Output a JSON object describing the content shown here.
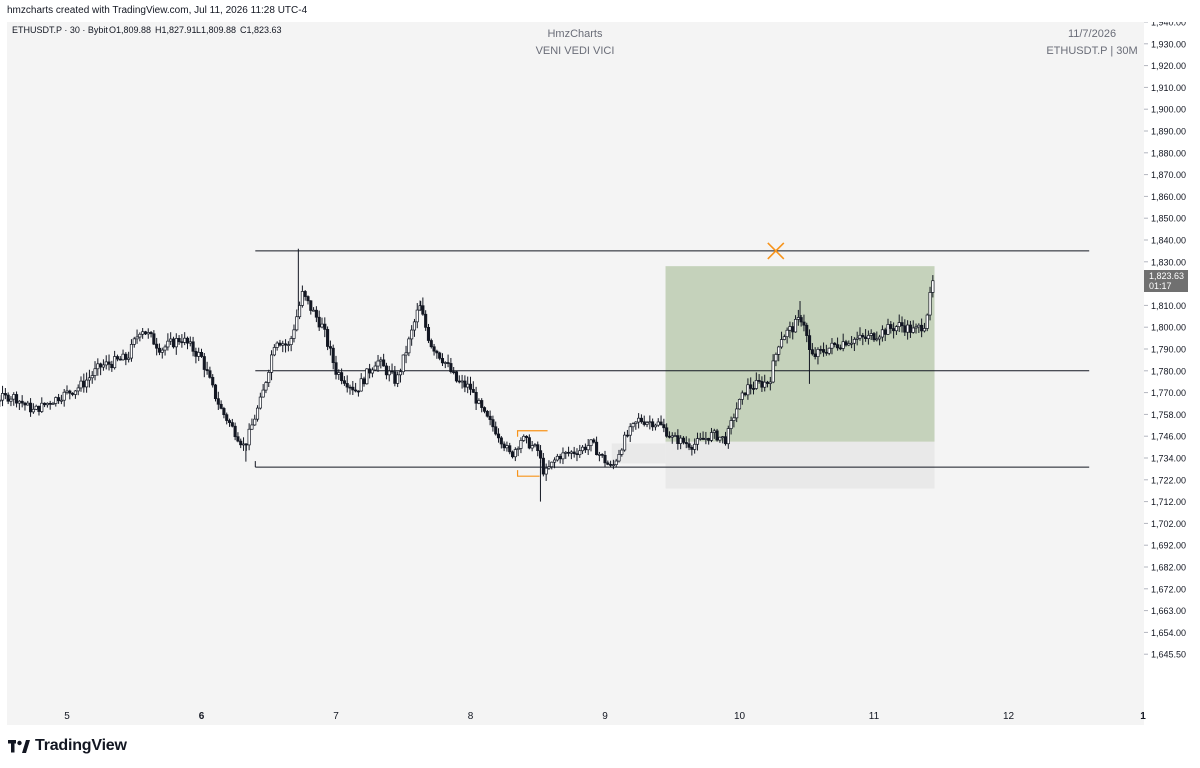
{
  "credit": "hmzcharts created with TradingView.com, Jul 11, 2026 11:28 UTC-4",
  "legend": {
    "symbol": "ETHUSDT.P · 30 · Bybit",
    "open": "O1,809.88",
    "high": "H1,827.91",
    "low": "L1,809.88",
    "close": "C1,823.63"
  },
  "watermark": {
    "title": "HmzCharts",
    "subtitle": "VENI VEDI VICI",
    "date": "11/7/2026",
    "symbol": "ETHUSDT.P | 30M"
  },
  "price_label": {
    "price": "1,823.63",
    "countdown": "01:17"
  },
  "brand": "TradingView",
  "colors": {
    "up": "#131722",
    "down": "#131722",
    "zone_fill": "#c5d2bb",
    "orange": "#f7931a",
    "background": "#f4f4f4"
  },
  "chart_data": {
    "type": "candlestick",
    "y_ticks": [
      "1,940.00",
      "1,930.00",
      "1,920.00",
      "1,910.00",
      "1,900.00",
      "1,890.00",
      "1,880.00",
      "1,870.00",
      "1,860.00",
      "1,850.00",
      "1,840.00",
      "1,830.00",
      "1,820.00",
      "1,810.00",
      "1,800.00",
      "1,790.00",
      "1,780.00",
      "1,770.00",
      "1,758.00",
      "1,746.00",
      "1,734.00",
      "1,722.00",
      "1,712.00",
      "1,702.00",
      "1,692.00",
      "1,682.00",
      "1,672.00",
      "1,663.00",
      "1,654.00",
      "1,645.50"
    ],
    "x_ticks": [
      {
        "label": "5",
        "day": 5,
        "bold": false
      },
      {
        "label": "6",
        "day": 6,
        "bold": true
      },
      {
        "label": "7",
        "day": 7,
        "bold": false
      },
      {
        "label": "8",
        "day": 8,
        "bold": false
      },
      {
        "label": "9",
        "day": 9,
        "bold": false
      },
      {
        "label": "10",
        "day": 10,
        "bold": false
      },
      {
        "label": "11",
        "day": 11,
        "bold": false
      },
      {
        "label": "12",
        "day": 12,
        "bold": false
      },
      {
        "label": "1",
        "day": 13,
        "bold": true
      }
    ],
    "levels": [
      {
        "price": 1835,
        "from": 6.4,
        "to": 12.6
      },
      {
        "price": 1780,
        "from": 6.4,
        "to": 12.6
      },
      {
        "price": 1729,
        "from": 6.4,
        "to": 12.6
      }
    ],
    "zone_target": {
      "from": 9.45,
      "to": 11.45,
      "top": 1828,
      "bottom": 1743
    },
    "zone_stop": {
      "from": 9.45,
      "to": 11.45,
      "top": 1743,
      "bottom": 1718
    },
    "zone_pre": {
      "from": 9.05,
      "to": 9.45,
      "top": 1742,
      "bottom": 1731
    },
    "marker_x": {
      "day": 10.27,
      "price": 1835
    },
    "brackets": [
      {
        "day": 8.35,
        "price": 1749,
        "dir": "right"
      },
      {
        "day": 8.35,
        "price": 1724,
        "dir": "left"
      }
    ],
    "path": [
      {
        "d": 4.0,
        "p": 1803
      },
      {
        "d": 4.2,
        "p": 1790
      },
      {
        "d": 4.4,
        "p": 1766
      },
      {
        "d": 4.6,
        "p": 1768
      },
      {
        "d": 4.75,
        "p": 1760
      },
      {
        "d": 4.95,
        "p": 1768
      },
      {
        "d": 5.1,
        "p": 1773
      },
      {
        "d": 5.25,
        "p": 1782
      },
      {
        "d": 5.45,
        "p": 1786
      },
      {
        "d": 5.55,
        "p": 1800
      },
      {
        "d": 5.7,
        "p": 1790
      },
      {
        "d": 5.85,
        "p": 1795
      },
      {
        "d": 6.0,
        "p": 1786
      },
      {
        "d": 6.15,
        "p": 1760
      },
      {
        "d": 6.32,
        "p": 1740
      },
      {
        "d": 6.45,
        "p": 1768
      },
      {
        "d": 6.55,
        "p": 1795
      },
      {
        "d": 6.65,
        "p": 1791
      },
      {
        "d": 6.75,
        "p": 1815
      },
      {
        "d": 6.9,
        "p": 1800
      },
      {
        "d": 7.0,
        "p": 1780
      },
      {
        "d": 7.15,
        "p": 1771
      },
      {
        "d": 7.3,
        "p": 1785
      },
      {
        "d": 7.45,
        "p": 1775
      },
      {
        "d": 7.55,
        "p": 1795
      },
      {
        "d": 7.62,
        "p": 1810
      },
      {
        "d": 7.7,
        "p": 1793
      },
      {
        "d": 7.8,
        "p": 1785
      },
      {
        "d": 7.9,
        "p": 1775
      },
      {
        "d": 8.0,
        "p": 1772
      },
      {
        "d": 8.1,
        "p": 1758
      },
      {
        "d": 8.2,
        "p": 1748
      },
      {
        "d": 8.3,
        "p": 1735
      },
      {
        "d": 8.38,
        "p": 1745
      },
      {
        "d": 8.5,
        "p": 1738
      },
      {
        "d": 8.55,
        "p": 1725
      },
      {
        "d": 8.65,
        "p": 1735
      },
      {
        "d": 8.8,
        "p": 1738
      },
      {
        "d": 8.9,
        "p": 1742
      },
      {
        "d": 8.97,
        "p": 1735
      },
      {
        "d": 9.05,
        "p": 1728
      },
      {
        "d": 9.15,
        "p": 1745
      },
      {
        "d": 9.25,
        "p": 1755
      },
      {
        "d": 9.4,
        "p": 1753
      },
      {
        "d": 9.5,
        "p": 1745
      },
      {
        "d": 9.65,
        "p": 1741
      },
      {
        "d": 9.8,
        "p": 1747
      },
      {
        "d": 9.9,
        "p": 1744
      },
      {
        "d": 9.97,
        "p": 1760
      },
      {
        "d": 10.05,
        "p": 1772
      },
      {
        "d": 10.15,
        "p": 1774
      },
      {
        "d": 10.22,
        "p": 1775
      },
      {
        "d": 10.3,
        "p": 1795
      },
      {
        "d": 10.4,
        "p": 1800
      },
      {
        "d": 10.47,
        "p": 1805
      },
      {
        "d": 10.53,
        "p": 1786
      },
      {
        "d": 10.65,
        "p": 1790
      },
      {
        "d": 10.8,
        "p": 1794
      },
      {
        "d": 10.95,
        "p": 1795
      },
      {
        "d": 11.1,
        "p": 1799
      },
      {
        "d": 11.2,
        "p": 1801
      },
      {
        "d": 11.3,
        "p": 1798
      },
      {
        "d": 11.38,
        "p": 1802
      },
      {
        "d": 11.45,
        "p": 1824
      }
    ]
  }
}
